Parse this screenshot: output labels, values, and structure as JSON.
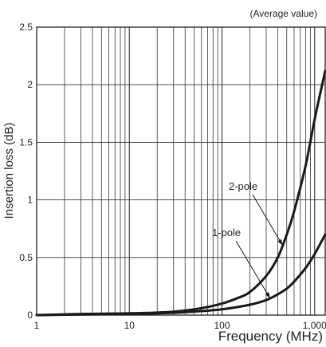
{
  "chart_data": {
    "type": "line",
    "note": "(Average value)",
    "xlabel": "Frequency (MHz)",
    "ylabel": "Insertion loss (dB)",
    "xscale": "log",
    "xlim": [
      1,
      1300
    ],
    "ylim": [
      0,
      2.5
    ],
    "grid": true,
    "xticks": [
      {
        "value": 1,
        "label": "1"
      },
      {
        "value": 10,
        "label": "10"
      },
      {
        "value": 100,
        "label": "100"
      },
      {
        "value": 1000,
        "label": "1,000"
      }
    ],
    "yticks": [
      {
        "value": 0,
        "label": "0"
      },
      {
        "value": 0.5,
        "label": "0.5"
      },
      {
        "value": 1,
        "label": "1"
      },
      {
        "value": 1.5,
        "label": "1.5"
      },
      {
        "value": 2,
        "label": "2"
      },
      {
        "value": 2.5,
        "label": "2.5"
      }
    ],
    "series": [
      {
        "name": "2-pole",
        "color": "#1a1a1a",
        "x": [
          1,
          3,
          10,
          30,
          60,
          100,
          150,
          200,
          300,
          400,
          500,
          600,
          800,
          1000,
          1300
        ],
        "y": [
          0.0,
          0.01,
          0.015,
          0.03,
          0.06,
          0.1,
          0.15,
          0.2,
          0.34,
          0.5,
          0.7,
          0.9,
          1.3,
          1.7,
          2.12
        ]
      },
      {
        "name": "1-pole",
        "color": "#1a1a1a",
        "x": [
          1,
          3,
          10,
          30,
          60,
          100,
          200,
          300,
          400,
          500,
          600,
          800,
          1000,
          1300
        ],
        "y": [
          0.0,
          0.005,
          0.01,
          0.02,
          0.035,
          0.05,
          0.09,
          0.13,
          0.18,
          0.23,
          0.29,
          0.41,
          0.53,
          0.7
        ]
      }
    ],
    "annotations": [
      {
        "label": "2-pole",
        "series": "2-pole",
        "x": 450
      },
      {
        "label": "1-pole",
        "series": "1-pole",
        "x": 330
      }
    ]
  }
}
